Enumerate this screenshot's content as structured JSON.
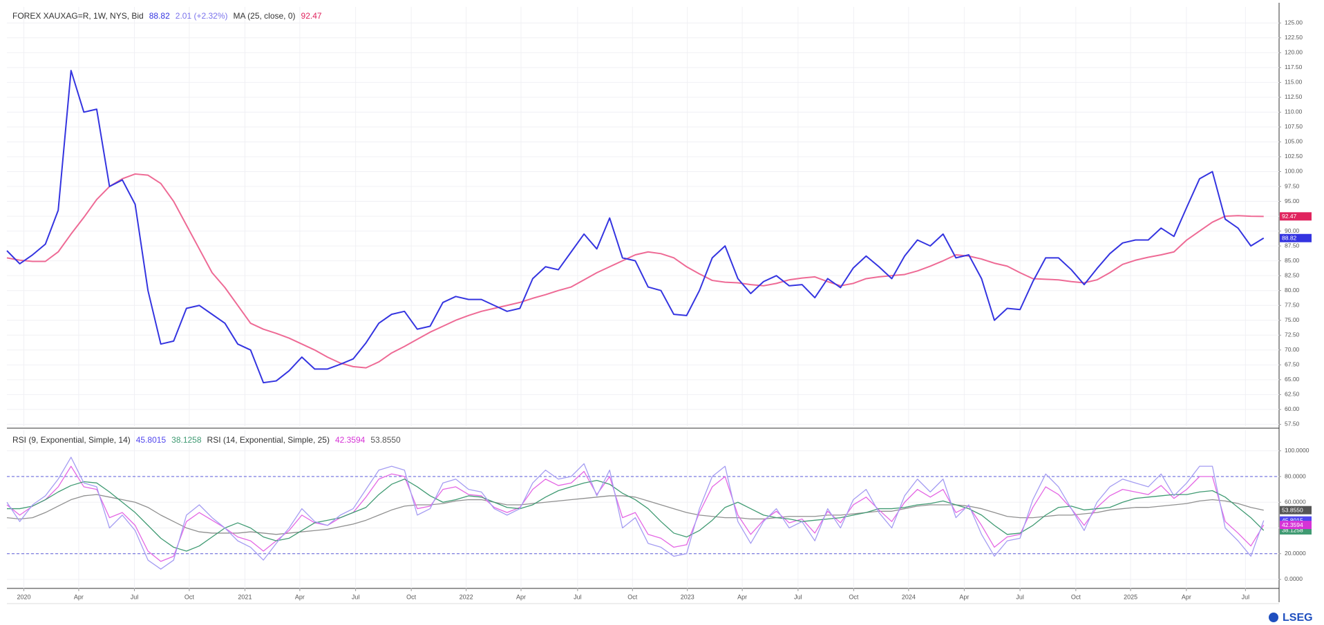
{
  "chart_data": [
    {
      "type": "line",
      "ylim": [
        57.2,
        127.7
      ],
      "yticks": [
        {
          "value": 57.5,
          "label": "57.50"
        },
        {
          "value": 60,
          "label": "60.00"
        },
        {
          "value": 62.5,
          "label": "62.50"
        },
        {
          "value": 65,
          "label": "65.00"
        },
        {
          "value": 67.5,
          "label": "67.50"
        },
        {
          "value": 70,
          "label": "70.00"
        },
        {
          "value": 72.5,
          "label": "72.50"
        },
        {
          "value": 75,
          "label": "75.00"
        },
        {
          "value": 77.5,
          "label": "77.50"
        },
        {
          "value": 80,
          "label": "80.00"
        },
        {
          "value": 82.5,
          "label": "82.50"
        },
        {
          "value": 85,
          "label": "85.00"
        },
        {
          "value": 87.5,
          "label": "87.50"
        },
        {
          "value": 90,
          "label": "90.00"
        },
        {
          "value": 92.5,
          "label": "92.50"
        },
        {
          "value": 95,
          "label": "95.00"
        },
        {
          "value": 97.5,
          "label": "97.50"
        },
        {
          "value": 100,
          "label": "100.00"
        },
        {
          "value": 102.5,
          "label": "102.50"
        },
        {
          "value": 105,
          "label": "105.00"
        },
        {
          "value": 107.5,
          "label": "107.50"
        },
        {
          "value": 110,
          "label": "110.00"
        },
        {
          "value": 112.5,
          "label": "112.50"
        },
        {
          "value": 115,
          "label": "115.00"
        },
        {
          "value": 117.5,
          "label": "117.50"
        },
        {
          "value": 120,
          "label": "120.00"
        },
        {
          "value": 122.5,
          "label": "122.50"
        },
        {
          "value": 125,
          "label": "125.00"
        }
      ],
      "grid": true,
      "series": [
        {
          "name": "FOREX XAUXAG=R, 1W, NYS, Bid",
          "color": "#3434e0",
          "value_label": "88.82",
          "change_label": "2.01 (+2.32%)",
          "change_color": "#7b73ec",
          "values": [
            86.7,
            84.5,
            86.0,
            87.8,
            93.5,
            117,
            110,
            110.5,
            97.5,
            98.6,
            94.5,
            80,
            71,
            71.5,
            77,
            77.5,
            76,
            74.5,
            71,
            70,
            64.5,
            64.8,
            66.5,
            68.8,
            66.8,
            66.8,
            67.6,
            68.5,
            71.2,
            74.5,
            76,
            76.5,
            73.5,
            74,
            78,
            79,
            78.5,
            78.5,
            77.5,
            76.5,
            77,
            82,
            84,
            83.5,
            86.5,
            89.5,
            87,
            92.2,
            85.5,
            85,
            80.6,
            80,
            76,
            75.8,
            80,
            85.5,
            87.5,
            82,
            79.5,
            81.5,
            82.5,
            80.8,
            81,
            78.8,
            82,
            80.5,
            83.8,
            85.8,
            84,
            82,
            85.8,
            88.5,
            87.5,
            89.5,
            85.5,
            86,
            82,
            75,
            77,
            76.8,
            81.5,
            85.5,
            85.5,
            83.5,
            81,
            83.7,
            86.2,
            88,
            88.5,
            88.5,
            90.5,
            89.1,
            94,
            98.8,
            100,
            92,
            90.5,
            87.5,
            88.82
          ]
        },
        {
          "name": "MA (25, close, 0)",
          "color": "#ee6a95",
          "value_label": "92.47",
          "label_color": "#e0245e",
          "values": [
            85.5,
            85.1,
            84.9,
            84.9,
            86.5,
            89.5,
            92.3,
            95.3,
            97.5,
            98.8,
            99.6,
            99.4,
            98.0,
            95.0,
            91.0,
            87.0,
            83.0,
            80.5,
            77.5,
            74.5,
            73.5,
            72.8,
            72.0,
            71.0,
            70.0,
            68.8,
            67.8,
            67.2,
            67.0,
            68.0,
            69.5,
            70.6,
            71.8,
            73.0,
            74.0,
            75.0,
            75.8,
            76.5,
            77.0,
            77.5,
            78.0,
            78.7,
            79.3,
            80.0,
            80.6,
            81.8,
            83.0,
            84.0,
            85.0,
            86.0,
            86.5,
            86.2,
            85.5,
            84.0,
            82.8,
            81.7,
            81.4,
            81.3,
            81.0,
            80.8,
            81.2,
            81.8,
            82.1,
            82.3,
            81.5,
            80.8,
            81.2,
            82.0,
            82.3,
            82.5,
            82.7,
            83.3,
            84.1,
            85.0,
            86.0,
            85.8,
            85.3,
            84.6,
            84.1,
            83.0,
            82.0,
            81.9,
            81.8,
            81.5,
            81.3,
            81.8,
            83.0,
            84.4,
            85.1,
            85.6,
            86.0,
            86.5,
            88.5,
            90.0,
            91.5,
            92.5,
            92.6,
            92.5,
            92.47
          ]
        }
      ]
    },
    {
      "type": "line",
      "ylim": [
        -7,
        116
      ],
      "yticks": [
        {
          "value": 0,
          "label": "0.0000"
        },
        {
          "value": 20,
          "label": "20.0000"
        },
        {
          "value": 40,
          "label": "40.0000"
        },
        {
          "value": 60,
          "label": "60.0000"
        },
        {
          "value": 80,
          "label": "80.0000"
        },
        {
          "value": 100,
          "label": "100.0000"
        }
      ],
      "bands": [
        80,
        20
      ],
      "band_color": "#5a5ad8",
      "xlim": [
        0,
        99.2
      ],
      "xticks": [
        {
          "value": 1.32,
          "label": "2020"
        },
        {
          "value": 5.6,
          "label": "Apr"
        },
        {
          "value": 9.94,
          "label": "Jul"
        },
        {
          "value": 14.22,
          "label": "Oct"
        },
        {
          "value": 18.56,
          "label": "2021"
        },
        {
          "value": 22.84,
          "label": "Apr"
        },
        {
          "value": 27.19,
          "label": "Jul"
        },
        {
          "value": 31.53,
          "label": "Oct"
        },
        {
          "value": 35.81,
          "label": "2022"
        },
        {
          "value": 40.09,
          "label": "Apr"
        },
        {
          "value": 44.5,
          "label": "Jul"
        },
        {
          "value": 48.78,
          "label": "Oct"
        },
        {
          "value": 53.06,
          "label": "2023"
        },
        {
          "value": 57.34,
          "label": "Apr"
        },
        {
          "value": 61.69,
          "label": "Jul"
        },
        {
          "value": 66.03,
          "label": "Oct"
        },
        {
          "value": 70.31,
          "label": "2024"
        },
        {
          "value": 74.65,
          "label": "Apr"
        },
        {
          "value": 79.0,
          "label": "Jul"
        },
        {
          "value": 83.35,
          "label": "Oct"
        },
        {
          "value": 87.62,
          "label": "2025"
        },
        {
          "value": 91.97,
          "label": "Apr"
        },
        {
          "value": 96.58,
          "label": "Jul"
        }
      ],
      "series": [
        {
          "name": "RSI (9, Exponential, Simple, 14)",
          "color": "#a49cf2",
          "value_label": "45.8015",
          "label_color": "#5146ee",
          "values": [
            60,
            45,
            58,
            65,
            78,
            95,
            75,
            72,
            40,
            50,
            38,
            15,
            8,
            15,
            50,
            58,
            48,
            40,
            30,
            25,
            15,
            28,
            40,
            55,
            45,
            42,
            50,
            55,
            70,
            85,
            88,
            85,
            50,
            55,
            75,
            78,
            70,
            68,
            55,
            50,
            55,
            75,
            85,
            78,
            80,
            90,
            65,
            85,
            40,
            48,
            28,
            25,
            18,
            20,
            55,
            80,
            88,
            45,
            28,
            45,
            55,
            40,
            45,
            30,
            55,
            40,
            62,
            70,
            52,
            40,
            65,
            78,
            68,
            78,
            48,
            58,
            35,
            18,
            30,
            32,
            62,
            82,
            72,
            55,
            38,
            60,
            72,
            78,
            75,
            72,
            82,
            65,
            75,
            88,
            88,
            40,
            30,
            18,
            45.8015
          ]
        },
        {
          "color": "#3f9a72",
          "value_label": "38.1258",
          "values": [
            55,
            55,
            57,
            62,
            68,
            73,
            76,
            75,
            68,
            60,
            52,
            42,
            32,
            25,
            22,
            26,
            33,
            40,
            44,
            40,
            33,
            30,
            32,
            38,
            44,
            46,
            48,
            52,
            56,
            66,
            74,
            78,
            72,
            65,
            60,
            62,
            65,
            64,
            60,
            56,
            55,
            58,
            64,
            69,
            72,
            75,
            77,
            74,
            67,
            62,
            55,
            45,
            36,
            33,
            38,
            46,
            56,
            60,
            55,
            50,
            48,
            47,
            45,
            46,
            47,
            48,
            50,
            52,
            55,
            55,
            56,
            58,
            59,
            61,
            58,
            55,
            50,
            42,
            35,
            36,
            42,
            50,
            56,
            57,
            54,
            55,
            56,
            60,
            63,
            64,
            65,
            66,
            66,
            68,
            69,
            64,
            56,
            48,
            38.1258
          ]
        },
        {
          "name": "RSI (14, Exponential, Simple, 25)",
          "color": "#e466e4",
          "value_label": "42.3594",
          "label_color": "#d633d6",
          "values": [
            58,
            50,
            57,
            62,
            72,
            88,
            72,
            70,
            48,
            52,
            42,
            22,
            14,
            18,
            45,
            52,
            46,
            40,
            33,
            30,
            22,
            30,
            38,
            50,
            44,
            42,
            48,
            52,
            64,
            78,
            82,
            80,
            55,
            57,
            70,
            72,
            66,
            65,
            56,
            52,
            56,
            70,
            78,
            73,
            75,
            84,
            66,
            80,
            48,
            52,
            35,
            32,
            25,
            27,
            52,
            72,
            80,
            50,
            35,
            46,
            53,
            44,
            47,
            36,
            53,
            44,
            58,
            64,
            54,
            45,
            60,
            70,
            64,
            70,
            52,
            57,
            42,
            25,
            33,
            35,
            56,
            72,
            66,
            55,
            42,
            56,
            65,
            70,
            68,
            66,
            73,
            63,
            70,
            80,
            80,
            45,
            36,
            26,
            42.3594
          ]
        },
        {
          "color": "#8f8f8f",
          "value_label": "53.8550",
          "label_color": "#555555",
          "values": [
            48,
            47,
            48,
            52,
            57,
            62,
            65,
            66,
            64,
            62,
            60,
            56,
            50,
            45,
            40,
            37,
            36,
            36,
            36,
            37,
            36,
            35,
            36,
            37,
            38,
            39,
            41,
            43,
            46,
            50,
            54,
            57,
            58,
            58,
            59,
            61,
            62,
            62,
            60,
            58,
            58,
            59,
            60,
            61,
            62,
            63,
            64,
            65,
            65,
            64,
            61,
            58,
            55,
            52,
            50,
            49,
            48,
            48,
            47,
            47,
            48,
            49,
            49,
            49,
            50,
            50,
            51,
            52,
            53,
            53,
            55,
            57,
            58,
            58,
            58,
            57,
            55,
            52,
            49,
            48,
            48,
            49,
            50,
            50,
            51,
            52,
            54,
            55,
            56,
            56,
            57,
            58,
            59,
            61,
            62,
            61,
            59,
            56,
            53.855
          ]
        }
      ]
    }
  ],
  "logo": "LSEG"
}
